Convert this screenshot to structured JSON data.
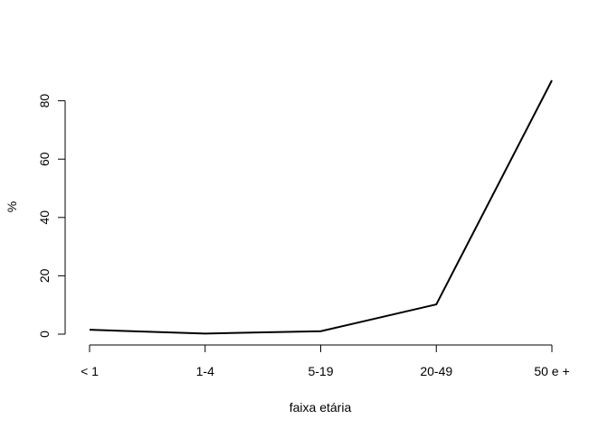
{
  "chart_data": {
    "type": "line",
    "categories": [
      "< 1",
      "1-4",
      "5-19",
      "20-49",
      "50 e +"
    ],
    "series": [
      {
        "values": [
          1.5,
          0.2,
          1.0,
          10.2,
          87.0
        ],
        "color": "#000000"
      }
    ],
    "xlabel": "faixa etária",
    "ylabel": "%",
    "ylim": [
      0,
      87
    ],
    "yticks": [
      0,
      20,
      40,
      60,
      80
    ],
    "grid": false,
    "legend": "none"
  }
}
